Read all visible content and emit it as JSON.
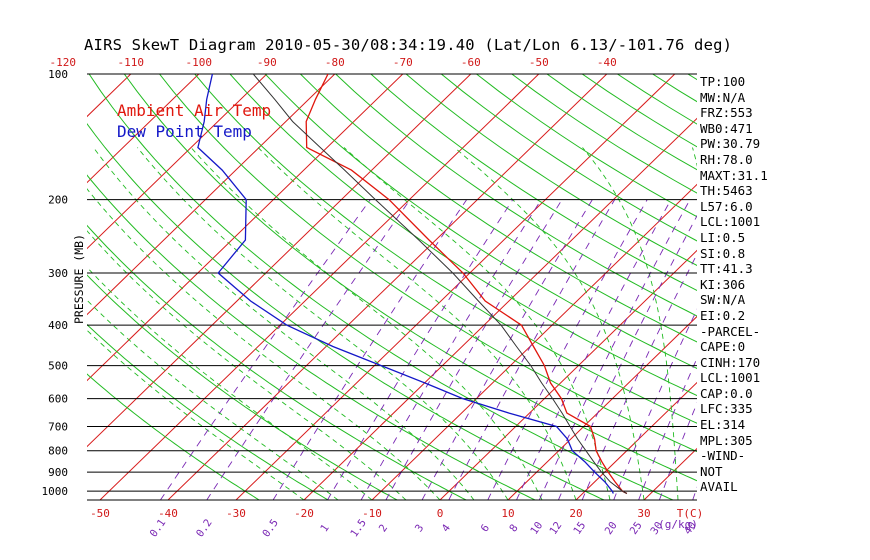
{
  "title": "AIRS SkewT Diagram 2010-05-30/08:34:19.40 (Lat/Lon 6.13/-101.76 deg)",
  "legend": {
    "ambient": "Ambient Air Temp",
    "dew": "Dew Point Temp"
  },
  "colors": {
    "ambient": "#e0160c",
    "dew": "#1418c8",
    "isotherm": "#d81b1b",
    "dry_adiabat": "#22bb22",
    "moist_adiabat": "#22bb22",
    "mixing_ratio": "#7a28b4",
    "parcel": "#333333",
    "isobar": "#000000"
  },
  "stats": [
    "TP:100",
    "MW:N/A",
    "FRZ:553",
    "WB0:471",
    "PW:30.79",
    "RH:78.0",
    "MAXT:31.1",
    "TH:5463",
    "L57:6.0",
    "LCL:1001",
    "LI:0.5",
    "SI:0.8",
    "TT:41.3",
    "KI:306",
    "SW:N/A",
    "EI:0.2",
    "-PARCEL-",
    "CAPE:0",
    "CINH:170",
    "LCL:1001",
    "CAP:0.0",
    "LFC:335",
    "EL:314",
    "MPL:305",
    "-WIND-",
    "NOT",
    "AVAIL"
  ],
  "chart_data": {
    "type": "line",
    "chart_kind": "skew-T log-p",
    "ylabel": "PRESSURE (MB)",
    "y_scale": "log",
    "ylim": [
      1050,
      100
    ],
    "pressure_ticks": [
      100,
      200,
      300,
      400,
      500,
      600,
      700,
      800,
      900,
      1000
    ],
    "pressure_tick_labels": [
      "100",
      "200",
      "300",
      "400",
      "500",
      "600",
      "700",
      "800",
      "900",
      "1000"
    ],
    "bottom_temp_ticks": [
      -50,
      -40,
      -30,
      -20,
      -10,
      0,
      10,
      20,
      30
    ],
    "bottom_temp_tick_labels": [
      "-50",
      "-40",
      "-30",
      "-20",
      "-10",
      "0",
      "10",
      "20",
      "30"
    ],
    "top_temp_ticks": [
      -120,
      -110,
      -100,
      -90,
      -80,
      -70,
      -60,
      -50,
      -40
    ],
    "top_temp_tick_labels": [
      "-120",
      "-110",
      "-100",
      "-90",
      "-80",
      "-70",
      "-60",
      "-50",
      "-40"
    ],
    "bottom_temp_unit": "T(C)",
    "mixing_ratio_ticks": [
      0.1,
      0.2,
      0.5,
      1,
      1.5,
      2,
      3,
      4,
      6,
      8,
      10,
      12,
      15,
      20,
      25,
      30,
      40
    ],
    "mixing_ratio_tick_labels": [
      "0.1",
      "0.2",
      "0.5",
      "1",
      "1.5",
      "2",
      "3",
      "4",
      "6",
      "8",
      "10",
      "12",
      "15",
      "20",
      "25",
      "30",
      "40"
    ],
    "mixing_ratio_unit": "(g/kg)",
    "series": [
      {
        "name": "Ambient Air Temp",
        "points": [
          {
            "p": 1013,
            "t": 26.5
          },
          {
            "p": 1000,
            "t": 25.5
          },
          {
            "p": 950,
            "t": 23.0
          },
          {
            "p": 900,
            "t": 20.5
          },
          {
            "p": 850,
            "t": 18.0
          },
          {
            "p": 800,
            "t": 15.5
          },
          {
            "p": 750,
            "t": 13.5
          },
          {
            "p": 700,
            "t": 11.0
          },
          {
            "p": 650,
            "t": 5.5
          },
          {
            "p": 600,
            "t": 2.5
          },
          {
            "p": 550,
            "t": -1.5
          },
          {
            "p": 500,
            "t": -5.0
          },
          {
            "p": 450,
            "t": -9.5
          },
          {
            "p": 400,
            "t": -14.5
          },
          {
            "p": 350,
            "t": -23.5
          },
          {
            "p": 300,
            "t": -31.0
          },
          {
            "p": 250,
            "t": -41.0
          },
          {
            "p": 200,
            "t": -53.0
          },
          {
            "p": 170,
            "t": -63.0
          },
          {
            "p": 150,
            "t": -73.0
          },
          {
            "p": 130,
            "t": -77.0
          },
          {
            "p": 115,
            "t": -79.0
          },
          {
            "p": 100,
            "t": -81.0
          }
        ]
      },
      {
        "name": "Dew Point Temp",
        "points": [
          {
            "p": 1013,
            "t": 24.5
          },
          {
            "p": 1000,
            "t": 24.0
          },
          {
            "p": 950,
            "t": 21.5
          },
          {
            "p": 900,
            "t": 18.5
          },
          {
            "p": 850,
            "t": 15.5
          },
          {
            "p": 800,
            "t": 12.0
          },
          {
            "p": 750,
            "t": 9.5
          },
          {
            "p": 700,
            "t": 6.0
          },
          {
            "p": 650,
            "t": -3.0
          },
          {
            "p": 600,
            "t": -12.0
          },
          {
            "p": 550,
            "t": -20.0
          },
          {
            "p": 500,
            "t": -29.0
          },
          {
            "p": 450,
            "t": -39.0
          },
          {
            "p": 400,
            "t": -49.0
          },
          {
            "p": 350,
            "t": -58.0
          },
          {
            "p": 300,
            "t": -67.0
          },
          {
            "p": 250,
            "t": -68.0
          },
          {
            "p": 200,
            "t": -74.0
          },
          {
            "p": 170,
            "t": -82.0
          },
          {
            "p": 150,
            "t": -89.0
          },
          {
            "p": 130,
            "t": -92.0
          },
          {
            "p": 115,
            "t": -95.0
          },
          {
            "p": 100,
            "t": -98.0
          }
        ]
      },
      {
        "points": [
          {
            "p": 1013,
            "t": 26.5
          },
          {
            "p": 1000,
            "t": 25.5
          },
          {
            "p": 950,
            "t": 22.3
          },
          {
            "p": 900,
            "t": 19.5
          },
          {
            "p": 850,
            "t": 16.8
          },
          {
            "p": 800,
            "t": 14.0
          },
          {
            "p": 750,
            "t": 11.0
          },
          {
            "p": 700,
            "t": 8.0
          },
          {
            "p": 650,
            "t": 4.8
          },
          {
            "p": 600,
            "t": 1.2
          },
          {
            "p": 550,
            "t": -2.8
          },
          {
            "p": 500,
            "t": -7.0
          },
          {
            "p": 450,
            "t": -12.0
          },
          {
            "p": 400,
            "t": -17.5
          },
          {
            "p": 350,
            "t": -24.5
          },
          {
            "p": 300,
            "t": -32.5
          },
          {
            "p": 250,
            "t": -42.5
          },
          {
            "p": 200,
            "t": -55.0
          },
          {
            "p": 170,
            "t": -64.0
          },
          {
            "p": 150,
            "t": -71.0
          },
          {
            "p": 130,
            "t": -79.0
          },
          {
            "p": 115,
            "t": -85.0
          },
          {
            "p": 100,
            "t": -92.0
          }
        ]
      }
    ]
  }
}
